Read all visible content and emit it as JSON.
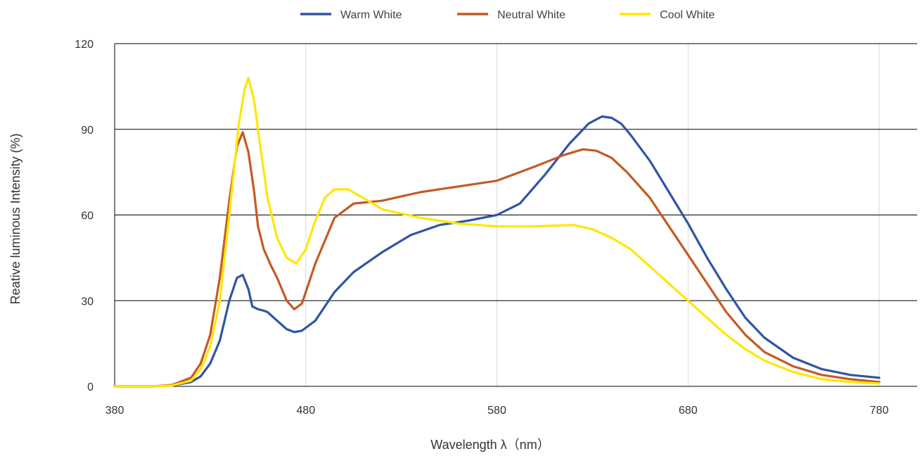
{
  "chart_data": {
    "type": "line",
    "xlabel": "Wavelength λ（nm）",
    "ylabel": "Reative luminous Intensity (%)",
    "xlim": [
      380,
      780
    ],
    "ylim": [
      0,
      120
    ],
    "xticks": [
      380,
      480,
      580,
      680,
      780
    ],
    "yticks": [
      0,
      30,
      60,
      90,
      120
    ],
    "grid": true,
    "legend": "top-center",
    "series": [
      {
        "name": "Warm White",
        "color": "#2f55a4",
        "x": [
          380,
          400,
          410,
          420,
          425,
          430,
          435,
          440,
          444,
          447,
          450,
          452,
          455,
          458,
          460,
          465,
          470,
          474,
          478,
          485,
          495,
          505,
          520,
          535,
          550,
          565,
          580,
          592,
          605,
          618,
          628,
          635,
          640,
          645,
          650,
          660,
          670,
          680,
          690,
          700,
          710,
          720,
          735,
          750,
          765,
          780
        ],
        "y": [
          0,
          0,
          0.3,
          1.5,
          3.5,
          8,
          16,
          30,
          38,
          39,
          34,
          28,
          27,
          26.5,
          26,
          23,
          20,
          19,
          19.5,
          23,
          33,
          40,
          47,
          53,
          56.5,
          58,
          60,
          64,
          74,
          85,
          92,
          94.5,
          94,
          92,
          88,
          79,
          68,
          57,
          45,
          34,
          24,
          17,
          10,
          6,
          4,
          3
        ]
      },
      {
        "name": "Neutral White",
        "color": "#c55a22",
        "x": [
          380,
          400,
          410,
          420,
          425,
          430,
          435,
          440,
          444,
          447,
          450,
          453,
          455,
          458,
          462,
          465,
          470,
          474,
          478,
          485,
          495,
          505,
          520,
          540,
          560,
          580,
          600,
          615,
          625,
          632,
          640,
          648,
          660,
          670,
          680,
          690,
          700,
          710,
          720,
          735,
          750,
          765,
          780
        ],
        "y": [
          0,
          0,
          0.5,
          3,
          8,
          18,
          38,
          65,
          84,
          89,
          82,
          68,
          56,
          48,
          42,
          38,
          30,
          27,
          29,
          43,
          59,
          64,
          65,
          68,
          70,
          72,
          77,
          81,
          83,
          82.5,
          80,
          75,
          66,
          56,
          46,
          36,
          26,
          18,
          12,
          7,
          4,
          2.5,
          1.5
        ]
      },
      {
        "name": "Cool White",
        "color": "#ffe600",
        "x": [
          380,
          400,
          410,
          420,
          425,
          430,
          435,
          440,
          445,
          448,
          450,
          453,
          456,
          460,
          465,
          470,
          475,
          480,
          485,
          490,
          495,
          502,
          510,
          520,
          540,
          560,
          580,
          600,
          620,
          630,
          640,
          650,
          660,
          670,
          680,
          690,
          700,
          710,
          720,
          735,
          750,
          765,
          780
        ],
        "y": [
          0,
          0,
          0.3,
          2,
          6,
          14,
          30,
          60,
          92,
          104,
          108,
          100,
          85,
          66,
          52,
          45,
          43,
          48,
          58,
          66,
          69,
          69,
          66,
          62,
          59,
          57,
          56,
          56,
          56.5,
          55,
          52,
          48,
          42,
          36,
          30,
          24,
          18,
          13,
          9,
          5,
          2.5,
          1.5,
          1
        ]
      }
    ]
  }
}
